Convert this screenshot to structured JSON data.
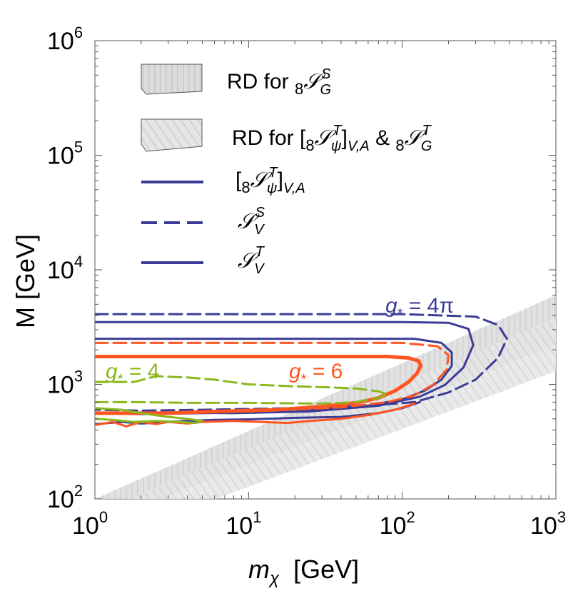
{
  "chart_data": {
    "type": "line",
    "title": "",
    "xlabel_var": "m",
    "xlabel_sub": "χ",
    "xlabel_unit": "[GeV]",
    "ylabel": "M   [GeV]",
    "xscale": "log",
    "yscale": "log",
    "xlim": [
      1,
      1000
    ],
    "ylim": [
      100,
      1000000
    ],
    "x_ticks": [
      {
        "base": "10",
        "exp": "0"
      },
      {
        "base": "10",
        "exp": "1"
      },
      {
        "base": "10",
        "exp": "2"
      },
      {
        "base": "10",
        "exp": "3"
      }
    ],
    "y_ticks": [
      {
        "base": "10",
        "exp": "2"
      },
      {
        "base": "10",
        "exp": "3"
      },
      {
        "base": "10",
        "exp": "4"
      },
      {
        "base": "10",
        "exp": "5"
      },
      {
        "base": "10",
        "exp": "6"
      }
    ],
    "legend": [
      {
        "kind": "band",
        "label": "RD for ₈𝒮ᴳˢ"
      },
      {
        "kind": "band-hatched",
        "label": "RD for [₈𝒮ᴛψ]V,A & ₈𝒮ᴳᵀ"
      },
      {
        "kind": "solid",
        "label": "[₈𝒮ᵀψ]V,A"
      },
      {
        "kind": "dashed",
        "label": "𝒮ᵥˢ"
      },
      {
        "kind": "solid",
        "label": "𝒮ᵥᵀ"
      }
    ],
    "legend_placement": "top-left",
    "colors": {
      "blue": "#3c3c96",
      "orange": "#ff5520",
      "green": "#8cb81e",
      "band": "#cccccc"
    },
    "annotations": [
      {
        "text": "g",
        "sub": "*",
        "rest": " = 4π",
        "color": "#3c3c96"
      },
      {
        "text": "g",
        "sub": "*",
        "rest": " = 6",
        "color": "#ff5520"
      },
      {
        "text": "g",
        "sub": "*",
        "rest": " = 4",
        "color": "#8cb81e"
      }
    ],
    "bands": [
      {
        "name": "RD for 8SGS",
        "lower": [
          [
            1,
            60
          ],
          [
            1000,
            2200
          ]
        ],
        "upper": [
          [
            1,
            100
          ],
          [
            1000,
            6000
          ]
        ]
      },
      {
        "name": "RD for [8SpsiT]V,A & 8SGT",
        "lower": [
          [
            1,
            40
          ],
          [
            1000,
            1300
          ]
        ],
        "upper": [
          [
            1,
            75
          ],
          [
            1000,
            3800
          ]
        ]
      }
    ],
    "series": [
      {
        "group": "g*=4pi",
        "style": "dashed",
        "color": "blue",
        "points": [
          [
            1,
            4100
          ],
          [
            100,
            4100
          ],
          [
            300,
            3900
          ],
          [
            420,
            3300
          ],
          [
            480,
            2500
          ],
          [
            420,
            1700
          ],
          [
            300,
            1100
          ],
          [
            200,
            850
          ],
          [
            120,
            700
          ],
          [
            60,
            650
          ],
          [
            20,
            620
          ],
          [
            5,
            600
          ],
          [
            2,
            590
          ],
          [
            1,
            600
          ]
        ]
      },
      {
        "group": "g*=4pi",
        "style": "solid",
        "color": "blue",
        "points": [
          [
            1,
            3500
          ],
          [
            100,
            3500
          ],
          [
            200,
            3450
          ],
          [
            270,
            3050
          ],
          [
            290,
            2200
          ],
          [
            250,
            1400
          ],
          [
            190,
            990
          ],
          [
            130,
            780
          ],
          [
            70,
            650
          ],
          [
            25,
            580
          ],
          [
            8,
            560
          ],
          [
            3,
            570
          ],
          [
            1,
            560
          ]
        ]
      },
      {
        "group": "g*=6",
        "style": "solid",
        "color": "blue",
        "points": [
          [
            1,
            2500
          ],
          [
            120,
            2500
          ],
          [
            180,
            2300
          ],
          [
            210,
            1900
          ],
          [
            210,
            1450
          ],
          [
            180,
            1100
          ],
          [
            140,
            880
          ],
          [
            100,
            740
          ],
          [
            60,
            650
          ],
          [
            20,
            580
          ],
          [
            5,
            560
          ],
          [
            2,
            550
          ],
          [
            1,
            560
          ]
        ]
      },
      {
        "group": "g*=6",
        "style": "dashed",
        "color": "orange",
        "points": [
          [
            1,
            2300
          ],
          [
            100,
            2300
          ],
          [
            170,
            2150
          ],
          [
            200,
            1800
          ],
          [
            195,
            1350
          ],
          [
            160,
            1000
          ],
          [
            120,
            800
          ],
          [
            80,
            700
          ],
          [
            40,
            630
          ],
          [
            10,
            580
          ],
          [
            3,
            560
          ],
          [
            1,
            560
          ]
        ]
      },
      {
        "group": "g*=6",
        "style": "solid",
        "color": "orange",
        "points": [
          [
            1,
            1750
          ],
          [
            80,
            1750
          ],
          [
            110,
            1700
          ],
          [
            128,
            1600
          ],
          [
            132,
            1450
          ],
          [
            125,
            1250
          ],
          [
            110,
            1050
          ],
          [
            90,
            880
          ],
          [
            70,
            760
          ],
          [
            50,
            690
          ],
          [
            30,
            640
          ],
          [
            15,
            600
          ],
          [
            6,
            580
          ],
          [
            3,
            560
          ],
          [
            1,
            560
          ]
        ]
      },
      {
        "group": "g*=4",
        "style": "dashed",
        "color": "green",
        "points": [
          [
            1,
            1050
          ],
          [
            1.8,
            1050
          ],
          [
            2.5,
            1180
          ],
          [
            4,
            1150
          ],
          [
            6,
            1100
          ],
          [
            10,
            1000
          ],
          [
            20,
            960
          ],
          [
            35,
            940
          ],
          [
            50,
            920
          ],
          [
            70,
            870
          ],
          [
            80,
            820
          ],
          [
            70,
            760
          ],
          [
            50,
            700
          ],
          [
            30,
            680
          ],
          [
            10,
            690
          ],
          [
            4,
            690
          ],
          [
            2,
            700
          ],
          [
            1,
            700
          ]
        ]
      },
      {
        "group": "lower",
        "style": "solid",
        "color": "blue",
        "points": [
          [
            1,
            450
          ],
          [
            1.5,
            470
          ],
          [
            2,
            455
          ],
          [
            3,
            470
          ],
          [
            4,
            480
          ],
          [
            6,
            490
          ],
          [
            10,
            495
          ],
          [
            20,
            510
          ],
          [
            40,
            520
          ],
          [
            70,
            560
          ],
          [
            100,
            620
          ],
          [
            130,
            700
          ]
        ]
      },
      {
        "group": "lower",
        "style": "solid",
        "color": "orange",
        "points": [
          [
            1,
            440
          ],
          [
            1.3,
            470
          ],
          [
            1.6,
            430
          ],
          [
            2,
            470
          ],
          [
            2.5,
            450
          ],
          [
            3,
            470
          ],
          [
            4,
            455
          ],
          [
            5,
            470
          ],
          [
            8,
            480
          ],
          [
            12,
            470
          ],
          [
            18,
            460
          ],
          [
            25,
            480
          ],
          [
            40,
            500
          ],
          [
            60,
            540
          ],
          [
            90,
            600
          ],
          [
            120,
            680
          ]
        ]
      },
      {
        "group": "lower",
        "style": "solid",
        "color": "green",
        "points": [
          [
            1,
            500
          ],
          [
            1.3,
            490
          ],
          [
            1.8,
            470
          ],
          [
            2.5,
            480
          ],
          [
            3.5,
            470
          ],
          [
            4.5,
            460
          ],
          [
            5,
            480
          ],
          [
            4,
            500
          ],
          [
            3,
            520
          ],
          [
            2,
            560
          ],
          [
            1.5,
            600
          ],
          [
            1,
            620
          ]
        ]
      }
    ]
  }
}
